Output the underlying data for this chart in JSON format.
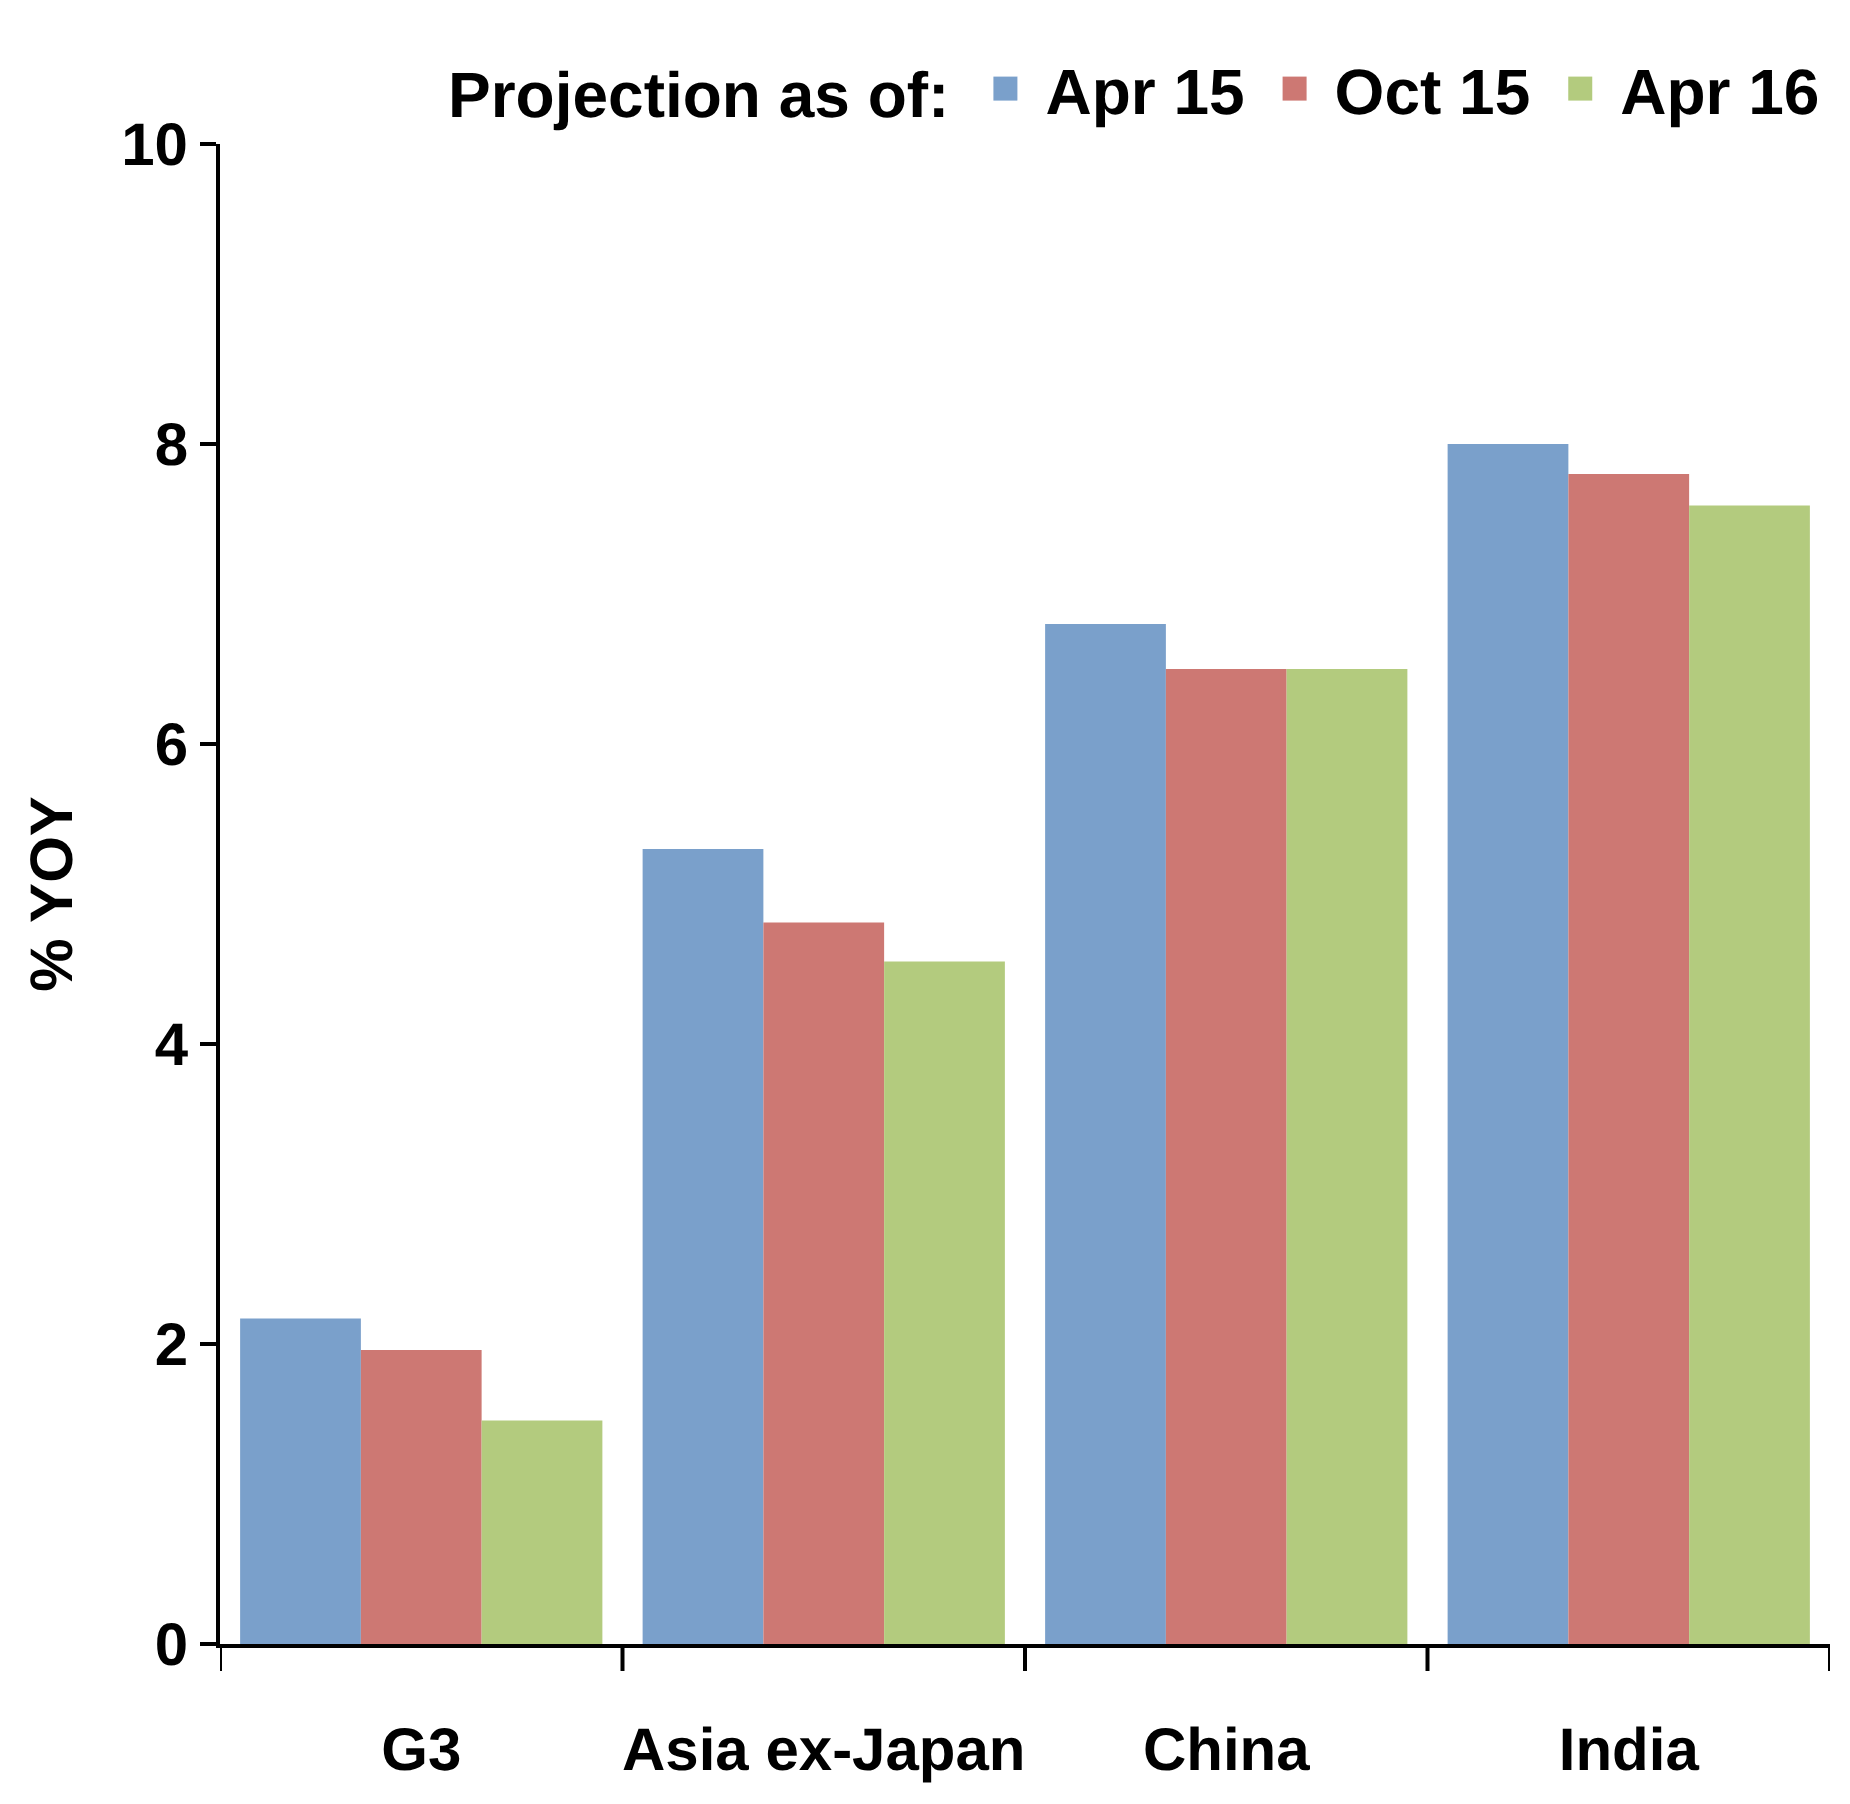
{
  "chart_data": {
    "type": "bar",
    "ylabel": "% YOY",
    "legend_title": "Projection as of:",
    "categories": [
      "G3",
      "Asia ex-Japan",
      "China",
      "India"
    ],
    "series": [
      {
        "name": "Apr 15",
        "color": "#7aa0cb",
        "values": [
          2.17,
          5.3,
          6.8,
          8.0
        ]
      },
      {
        "name": "Oct 15",
        "color": "#cd7873",
        "values": [
          1.96,
          4.81,
          6.5,
          7.8
        ]
      },
      {
        "name": "Apr 16",
        "color": "#b3cb7e",
        "values": [
          1.49,
          4.55,
          6.5,
          7.59
        ]
      }
    ],
    "ylim": [
      0,
      10
    ],
    "yticks": [
      0,
      2,
      4,
      6,
      8,
      10
    ],
    "legend": "top"
  }
}
